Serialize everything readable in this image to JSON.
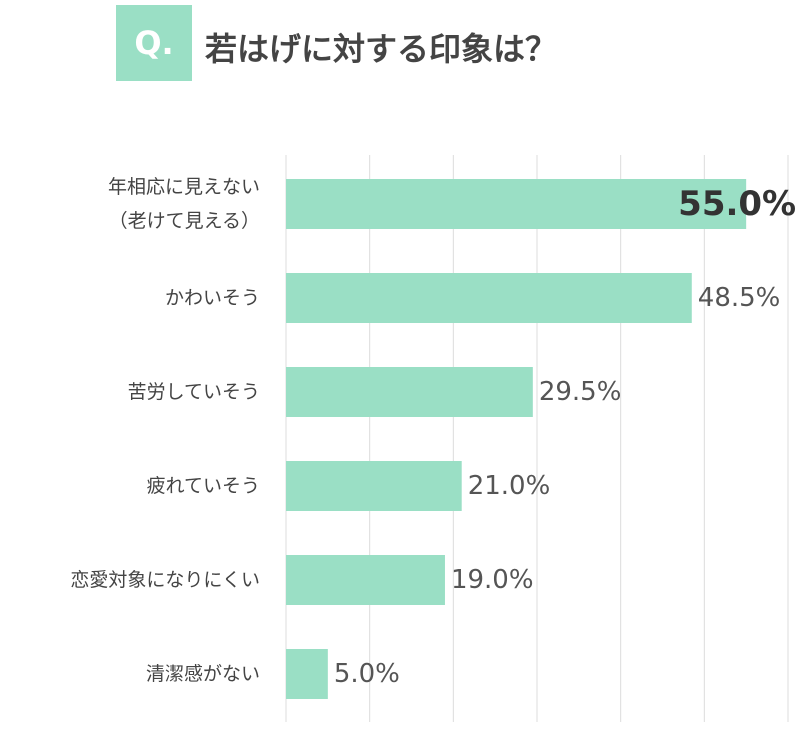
{
  "chart_data": {
    "type": "barh",
    "badge": "Q.",
    "title": "若はげに対する印象は？",
    "categories": [
      "年相応に見えない\n（老けて見える）",
      "かわいそう",
      "苦労していそう",
      "疲れていそう",
      "恋愛対象になりにくい",
      "清潔感がない"
    ],
    "values": [
      55,
      48.5,
      29.5,
      21,
      19,
      5
    ],
    "value_labels": [
      "55.0%",
      "48.5%",
      "29.5%",
      "21.0%",
      "19.0%",
      "5.0%"
    ],
    "color": "#9adfc5",
    "xlim": [
      0,
      60
    ],
    "xticks": [
      0,
      10,
      20,
      30,
      40,
      50,
      60
    ],
    "grid": true
  }
}
